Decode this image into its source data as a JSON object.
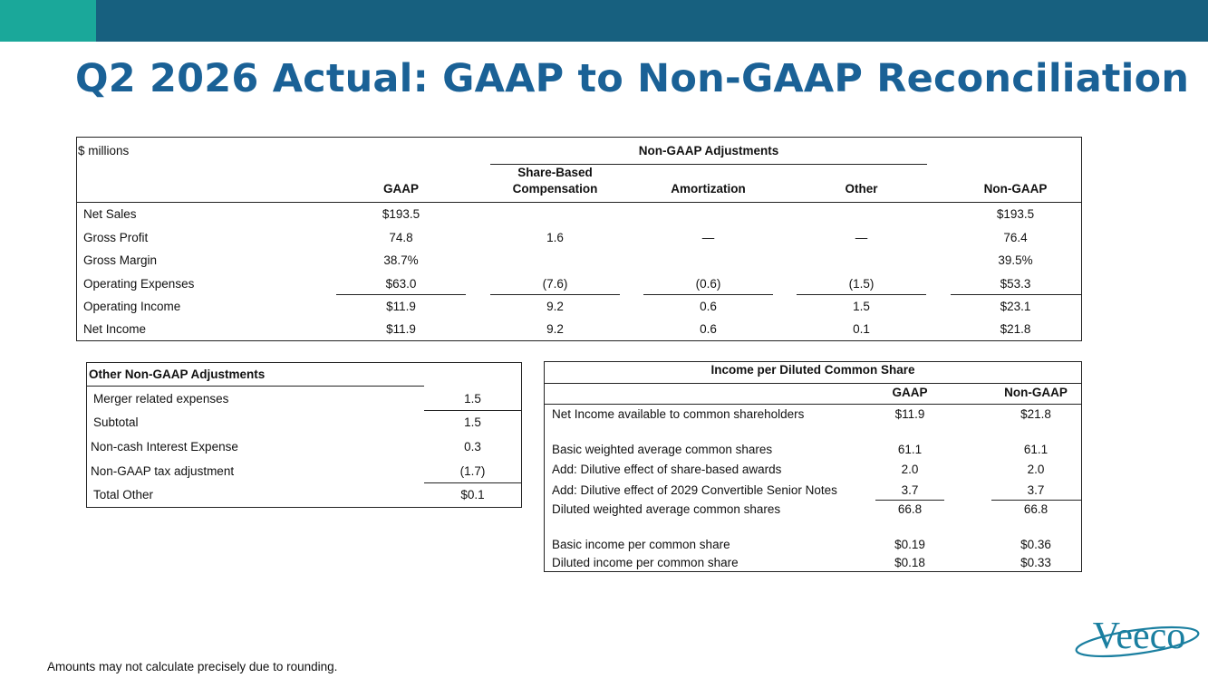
{
  "title": "Q2 2026 Actual: GAAP to Non-GAAP Reconciliation",
  "colors": {
    "topbar": "#17607f",
    "accent": "#1aa89a",
    "title": "#1a6196",
    "logo": "#1a7fa0"
  },
  "main_table": {
    "units": "$ millions",
    "group_header": "Non-GAAP Adjustments",
    "headers": {
      "gaap": "GAAP",
      "sbc_line1": "Share-Based",
      "sbc_line2": "Compensation",
      "amortization": "Amortization",
      "other": "Other",
      "non_gaap": "Non-GAAP"
    },
    "rows": [
      {
        "label": "Net Sales",
        "gaap": "$193.5",
        "sbc": "",
        "amort": "",
        "other": "",
        "non_gaap": "$193.5"
      },
      {
        "label": "Gross Profit",
        "gaap": "74.8",
        "sbc": "1.6",
        "amort": "—",
        "other": "—",
        "non_gaap": "76.4"
      },
      {
        "label": "Gross Margin",
        "gaap": "38.7%",
        "sbc": "",
        "amort": "",
        "other": "",
        "non_gaap": "39.5%"
      },
      {
        "label": "Operating Expenses",
        "gaap": "$63.0",
        "sbc": "(7.6)",
        "amort": "(0.6)",
        "other": "(1.5)",
        "non_gaap": "$53.3"
      },
      {
        "label": "Operating Income",
        "gaap": "$11.9",
        "sbc": "9.2",
        "amort": "0.6",
        "other": "1.5",
        "non_gaap": "$23.1"
      },
      {
        "label": "Net Income",
        "gaap": "$11.9",
        "sbc": "9.2",
        "amort": "0.6",
        "other": "0.1",
        "non_gaap": "$21.8"
      }
    ]
  },
  "other_table": {
    "title": "Other Non-GAAP Adjustments",
    "rows": [
      {
        "label": "Merger related expenses",
        "value": "1.5"
      },
      {
        "label": "Subtotal",
        "value": "1.5"
      },
      {
        "label": "Non-cash Interest Expense",
        "value": "0.3"
      },
      {
        "label": "Non-GAAP tax adjustment",
        "value": "(1.7)"
      },
      {
        "label": "Total Other",
        "value": "$0.1"
      }
    ]
  },
  "eps_table": {
    "title": "Income per Diluted Common Share",
    "headers": {
      "gaap": "GAAP",
      "non_gaap": "Non-GAAP"
    },
    "rows": [
      {
        "label": "Net Income available to common shareholders",
        "gaap": "$11.9",
        "non_gaap": "$21.8"
      },
      {
        "label": "Basic weighted average common shares",
        "gaap": "61.1",
        "non_gaap": "61.1"
      },
      {
        "label": "Add: Dilutive effect of share-based awards",
        "gaap": "2.0",
        "non_gaap": "2.0"
      },
      {
        "label": "Add: Dilutive effect of 2029 Convertible Senior Notes",
        "gaap": "3.7",
        "non_gaap": "3.7"
      },
      {
        "label": "Diluted weighted average common shares",
        "gaap": "66.8",
        "non_gaap": "66.8"
      },
      {
        "label": "Basic income per common share",
        "gaap": "$0.19",
        "non_gaap": "$0.36"
      },
      {
        "label": "Diluted income per common share",
        "gaap": "$0.18",
        "non_gaap": "$0.33"
      }
    ]
  },
  "footnote": "Amounts may not calculate precisely due to rounding.",
  "logo_text": "Veeco"
}
